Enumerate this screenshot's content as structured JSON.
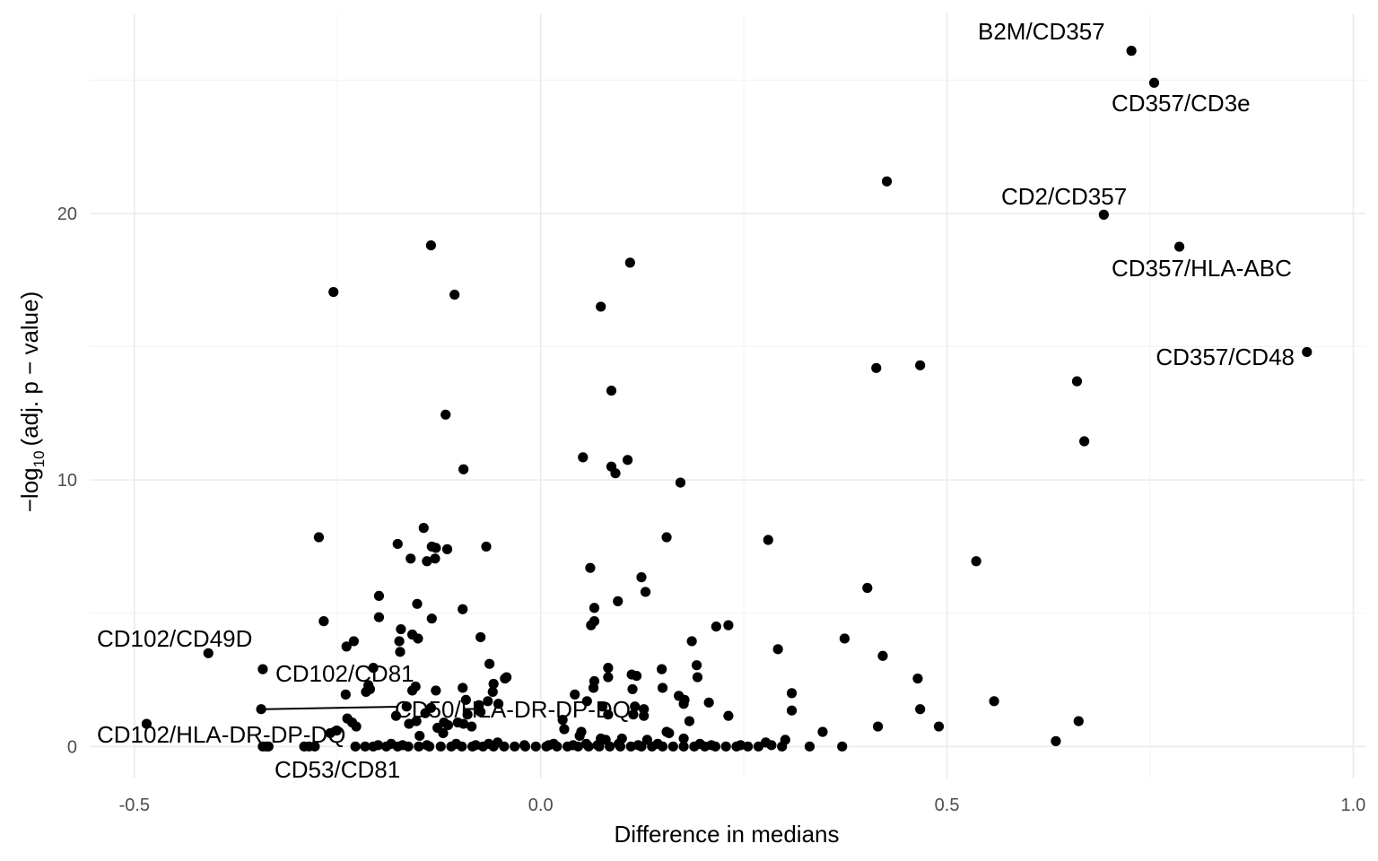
{
  "chart_data": {
    "type": "scatter",
    "title": "",
    "xlabel": "Difference in medians",
    "ylabel": {
      "prefix": "−log",
      "subscript": "10",
      "suffix": "(adj. p − value)"
    },
    "xlim": [
      -0.555,
      1.015
    ],
    "ylim": [
      -1.2,
      27.5
    ],
    "x_ticks": [
      -0.5,
      0.0,
      0.5,
      1.0
    ],
    "x_tick_labels": [
      "-0.5",
      "0.0",
      "0.5",
      "1.0"
    ],
    "y_ticks": [
      0,
      10,
      20
    ],
    "y_tick_labels": [
      "0",
      "10",
      "20"
    ],
    "grid": true,
    "legend": "none",
    "point_color": "#000000",
    "labeled_points": [
      {
        "label": "B2M/CD357",
        "x": 0.727,
        "y": 26.1
      },
      {
        "label": "CD357/CD3e",
        "x": 0.755,
        "y": 24.9
      },
      {
        "label": "CD2/CD357",
        "x": 0.693,
        "y": 19.95
      },
      {
        "label": "CD357/HLA-ABC",
        "x": 0.786,
        "y": 18.75
      },
      {
        "label": "CD357/CD48",
        "x": 0.943,
        "y": 14.8
      },
      {
        "label": "CD102/CD49D",
        "x": -0.409,
        "y": 3.5
      },
      {
        "label": "CD102/CD81",
        "x": -0.342,
        "y": 2.9
      },
      {
        "label": "CD50/HLA-DR-DP-DQ",
        "x": -0.344,
        "y": 1.4
      },
      {
        "label": "CD102/HLA-DR-DP-DQ",
        "x": -0.485,
        "y": 0.85
      },
      {
        "label": "CD53/CD81",
        "x": -0.338,
        "y": 0.0
      }
    ],
    "points": [
      {
        "x": 0.426,
        "y": 21.2
      },
      {
        "x": -0.135,
        "y": 18.8
      },
      {
        "x": 0.11,
        "y": 18.15
      },
      {
        "x": -0.255,
        "y": 17.05
      },
      {
        "x": -0.106,
        "y": 16.95
      },
      {
        "x": 0.074,
        "y": 16.5
      },
      {
        "x": 0.413,
        "y": 14.2
      },
      {
        "x": 0.467,
        "y": 14.3
      },
      {
        "x": 0.66,
        "y": 13.7
      },
      {
        "x": 0.087,
        "y": 13.35
      },
      {
        "x": -0.117,
        "y": 12.45
      },
      {
        "x": 0.669,
        "y": 11.45
      },
      {
        "x": 0.052,
        "y": 10.85
      },
      {
        "x": 0.107,
        "y": 10.75
      },
      {
        "x": 0.087,
        "y": 10.5
      },
      {
        "x": 0.092,
        "y": 10.25
      },
      {
        "x": -0.095,
        "y": 10.4
      },
      {
        "x": 0.172,
        "y": 9.9
      },
      {
        "x": -0.144,
        "y": 8.2
      },
      {
        "x": -0.273,
        "y": 7.85
      },
      {
        "x": 0.155,
        "y": 7.85
      },
      {
        "x": 0.28,
        "y": 7.75
      },
      {
        "x": -0.176,
        "y": 7.6
      },
      {
        "x": -0.134,
        "y": 7.5
      },
      {
        "x": -0.129,
        "y": 7.45
      },
      {
        "x": -0.115,
        "y": 7.4
      },
      {
        "x": -0.067,
        "y": 7.5
      },
      {
        "x": -0.16,
        "y": 7.05
      },
      {
        "x": -0.14,
        "y": 6.95
      },
      {
        "x": -0.13,
        "y": 7.05
      },
      {
        "x": 0.536,
        "y": 6.95
      },
      {
        "x": 0.061,
        "y": 6.7
      },
      {
        "x": 0.124,
        "y": 6.35
      },
      {
        "x": 0.402,
        "y": 5.95
      },
      {
        "x": 0.129,
        "y": 5.8
      },
      {
        "x": 0.095,
        "y": 5.45
      },
      {
        "x": -0.199,
        "y": 5.65
      },
      {
        "x": -0.152,
        "y": 5.35
      },
      {
        "x": 0.066,
        "y": 5.2
      },
      {
        "x": -0.096,
        "y": 5.15
      },
      {
        "x": -0.199,
        "y": 4.85
      },
      {
        "x": -0.134,
        "y": 4.8
      },
      {
        "x": -0.267,
        "y": 4.7
      },
      {
        "x": 0.066,
        "y": 4.7
      },
      {
        "x": 0.062,
        "y": 4.55
      },
      {
        "x": 0.216,
        "y": 4.5
      },
      {
        "x": 0.231,
        "y": 4.55
      },
      {
        "x": -0.172,
        "y": 4.4
      },
      {
        "x": -0.158,
        "y": 4.2
      },
      {
        "x": -0.151,
        "y": 4.05
      },
      {
        "x": -0.074,
        "y": 4.1
      },
      {
        "x": -0.23,
        "y": 3.95
      },
      {
        "x": -0.174,
        "y": 3.95
      },
      {
        "x": 0.186,
        "y": 3.95
      },
      {
        "x": 0.374,
        "y": 4.05
      },
      {
        "x": -0.239,
        "y": 3.75
      },
      {
        "x": -0.173,
        "y": 3.55
      },
      {
        "x": 0.292,
        "y": 3.65
      },
      {
        "x": 0.421,
        "y": 3.4
      },
      {
        "x": -0.063,
        "y": 3.1
      },
      {
        "x": 0.192,
        "y": 3.05
      },
      {
        "x": -0.206,
        "y": 2.95
      },
      {
        "x": 0.083,
        "y": 2.95
      },
      {
        "x": 0.149,
        "y": 2.9
      },
      {
        "x": 0.112,
        "y": 2.7
      },
      {
        "x": 0.118,
        "y": 2.65
      },
      {
        "x": 0.083,
        "y": 2.6
      },
      {
        "x": 0.193,
        "y": 2.6
      },
      {
        "x": -0.044,
        "y": 2.55
      },
      {
        "x": -0.042,
        "y": 2.6
      },
      {
        "x": 0.066,
        "y": 2.45
      },
      {
        "x": 0.464,
        "y": 2.55
      },
      {
        "x": -0.058,
        "y": 2.35
      },
      {
        "x": -0.154,
        "y": 2.25
      },
      {
        "x": -0.096,
        "y": 2.2
      },
      {
        "x": -0.212,
        "y": 2.3
      },
      {
        "x": -0.21,
        "y": 2.15
      },
      {
        "x": -0.215,
        "y": 2.05
      },
      {
        "x": -0.129,
        "y": 2.1
      },
      {
        "x": -0.158,
        "y": 2.1
      },
      {
        "x": 0.065,
        "y": 2.2
      },
      {
        "x": 0.113,
        "y": 2.15
      },
      {
        "x": 0.15,
        "y": 2.2
      },
      {
        "x": -0.059,
        "y": 2.05
      },
      {
        "x": -0.24,
        "y": 1.95
      },
      {
        "x": 0.309,
        "y": 2.0
      },
      {
        "x": 0.042,
        "y": 1.95
      },
      {
        "x": 0.17,
        "y": 1.9
      },
      {
        "x": 0.177,
        "y": 1.75
      },
      {
        "x": 0.207,
        "y": 1.65
      },
      {
        "x": 0.558,
        "y": 1.7
      },
      {
        "x": -0.092,
        "y": 1.75
      },
      {
        "x": -0.065,
        "y": 1.7
      },
      {
        "x": 0.057,
        "y": 1.7
      },
      {
        "x": -0.052,
        "y": 1.6
      },
      {
        "x": 0.176,
        "y": 1.6
      },
      {
        "x": -0.076,
        "y": 1.55
      },
      {
        "x": -0.135,
        "y": 1.45
      },
      {
        "x": -0.165,
        "y": 1.5
      },
      {
        "x": 0.076,
        "y": 1.5
      },
      {
        "x": 0.116,
        "y": 1.5
      },
      {
        "x": 0.127,
        "y": 1.4
      },
      {
        "x": 0.309,
        "y": 1.35
      },
      {
        "x": 0.467,
        "y": 1.4
      },
      {
        "x": -0.074,
        "y": 1.3
      },
      {
        "x": -0.142,
        "y": 1.25
      },
      {
        "x": -0.09,
        "y": 1.2
      },
      {
        "x": -0.178,
        "y": 1.15
      },
      {
        "x": 0.114,
        "y": 1.2
      },
      {
        "x": 0.127,
        "y": 1.15
      },
      {
        "x": 0.083,
        "y": 1.2
      },
      {
        "x": 0.231,
        "y": 1.15
      },
      {
        "x": 0.027,
        "y": 1.0
      },
      {
        "x": 0.183,
        "y": 0.95
      },
      {
        "x": 0.662,
        "y": 0.95
      },
      {
        "x": -0.238,
        "y": 1.05
      },
      {
        "x": -0.232,
        "y": 0.9
      },
      {
        "x": -0.162,
        "y": 0.85
      },
      {
        "x": -0.153,
        "y": 0.95
      },
      {
        "x": -0.227,
        "y": 0.75
      },
      {
        "x": -0.251,
        "y": 0.6
      },
      {
        "x": -0.119,
        "y": 0.9
      },
      {
        "x": -0.114,
        "y": 0.8
      },
      {
        "x": -0.095,
        "y": 0.85
      },
      {
        "x": -0.102,
        "y": 0.9
      },
      {
        "x": -0.085,
        "y": 0.75
      },
      {
        "x": 0.415,
        "y": 0.75
      },
      {
        "x": 0.49,
        "y": 0.75
      },
      {
        "x": -0.127,
        "y": 0.7
      },
      {
        "x": -0.259,
        "y": 0.5
      },
      {
        "x": 0.029,
        "y": 0.65
      },
      {
        "x": 0.05,
        "y": 0.55
      },
      {
        "x": 0.155,
        "y": 0.55
      },
      {
        "x": 0.158,
        "y": 0.5
      },
      {
        "x": 0.347,
        "y": 0.55
      },
      {
        "x": -0.149,
        "y": 0.4
      },
      {
        "x": -0.12,
        "y": 0.5
      },
      {
        "x": 0.048,
        "y": 0.4
      },
      {
        "x": 0.074,
        "y": 0.3
      },
      {
        "x": 0.08,
        "y": 0.25
      },
      {
        "x": 0.1,
        "y": 0.3
      },
      {
        "x": 0.131,
        "y": 0.25
      },
      {
        "x": 0.176,
        "y": 0.3
      },
      {
        "x": 0.301,
        "y": 0.25
      },
      {
        "x": 0.634,
        "y": 0.2
      },
      {
        "x": 0.277,
        "y": 0.15
      },
      {
        "x": -0.053,
        "y": 0.15
      },
      {
        "x": -0.342,
        "y": 0.0
      },
      {
        "x": -0.335,
        "y": 0.0
      },
      {
        "x": -0.291,
        "y": 0.0
      },
      {
        "x": -0.285,
        "y": 0.0
      },
      {
        "x": -0.278,
        "y": 0.0
      },
      {
        "x": -0.228,
        "y": 0.0
      },
      {
        "x": -0.216,
        "y": 0.0
      },
      {
        "x": -0.206,
        "y": 0.0
      },
      {
        "x": -0.19,
        "y": 0.0
      },
      {
        "x": -0.176,
        "y": 0.0
      },
      {
        "x": -0.163,
        "y": 0.0
      },
      {
        "x": -0.15,
        "y": 0.0
      },
      {
        "x": -0.137,
        "y": 0.0
      },
      {
        "x": -0.123,
        "y": 0.0
      },
      {
        "x": -0.11,
        "y": 0.0
      },
      {
        "x": -0.097,
        "y": 0.0
      },
      {
        "x": -0.084,
        "y": 0.0
      },
      {
        "x": -0.071,
        "y": 0.0
      },
      {
        "x": -0.058,
        "y": 0.0
      },
      {
        "x": -0.045,
        "y": 0.0
      },
      {
        "x": -0.032,
        "y": 0.0
      },
      {
        "x": -0.019,
        "y": 0.0
      },
      {
        "x": -0.006,
        "y": 0.0
      },
      {
        "x": 0.007,
        "y": 0.0
      },
      {
        "x": 0.02,
        "y": 0.0
      },
      {
        "x": 0.033,
        "y": 0.0
      },
      {
        "x": 0.046,
        "y": 0.0
      },
      {
        "x": 0.059,
        "y": 0.0
      },
      {
        "x": 0.072,
        "y": 0.0
      },
      {
        "x": 0.085,
        "y": 0.0
      },
      {
        "x": 0.098,
        "y": 0.0
      },
      {
        "x": 0.111,
        "y": 0.0
      },
      {
        "x": 0.124,
        "y": 0.0
      },
      {
        "x": 0.137,
        "y": 0.0
      },
      {
        "x": 0.15,
        "y": 0.0
      },
      {
        "x": 0.163,
        "y": 0.0
      },
      {
        "x": 0.176,
        "y": 0.0
      },
      {
        "x": 0.189,
        "y": 0.0
      },
      {
        "x": 0.202,
        "y": 0.0
      },
      {
        "x": 0.215,
        "y": 0.0
      },
      {
        "x": 0.228,
        "y": 0.0
      },
      {
        "x": 0.241,
        "y": 0.0
      },
      {
        "x": 0.255,
        "y": 0.0
      },
      {
        "x": 0.268,
        "y": 0.0
      },
      {
        "x": 0.297,
        "y": 0.0
      },
      {
        "x": 0.331,
        "y": 0.0
      },
      {
        "x": 0.371,
        "y": 0.0
      },
      {
        "x": -0.2,
        "y": 0.05
      },
      {
        "x": -0.17,
        "y": 0.05
      },
      {
        "x": -0.14,
        "y": 0.05
      },
      {
        "x": -0.08,
        "y": 0.05
      },
      {
        "x": -0.02,
        "y": 0.05
      },
      {
        "x": 0.01,
        "y": 0.05
      },
      {
        "x": 0.04,
        "y": 0.05
      },
      {
        "x": 0.07,
        "y": 0.05
      },
      {
        "x": 0.12,
        "y": 0.05
      },
      {
        "x": 0.21,
        "y": 0.05
      },
      {
        "x": -0.184,
        "y": 0.1
      },
      {
        "x": -0.104,
        "y": 0.1
      },
      {
        "x": -0.064,
        "y": 0.1
      },
      {
        "x": 0.016,
        "y": 0.1
      },
      {
        "x": 0.056,
        "y": 0.1
      },
      {
        "x": 0.096,
        "y": 0.1
      },
      {
        "x": 0.144,
        "y": 0.1
      },
      {
        "x": 0.196,
        "y": 0.1
      },
      {
        "x": 0.246,
        "y": 0.05
      },
      {
        "x": 0.284,
        "y": 0.05
      }
    ]
  }
}
